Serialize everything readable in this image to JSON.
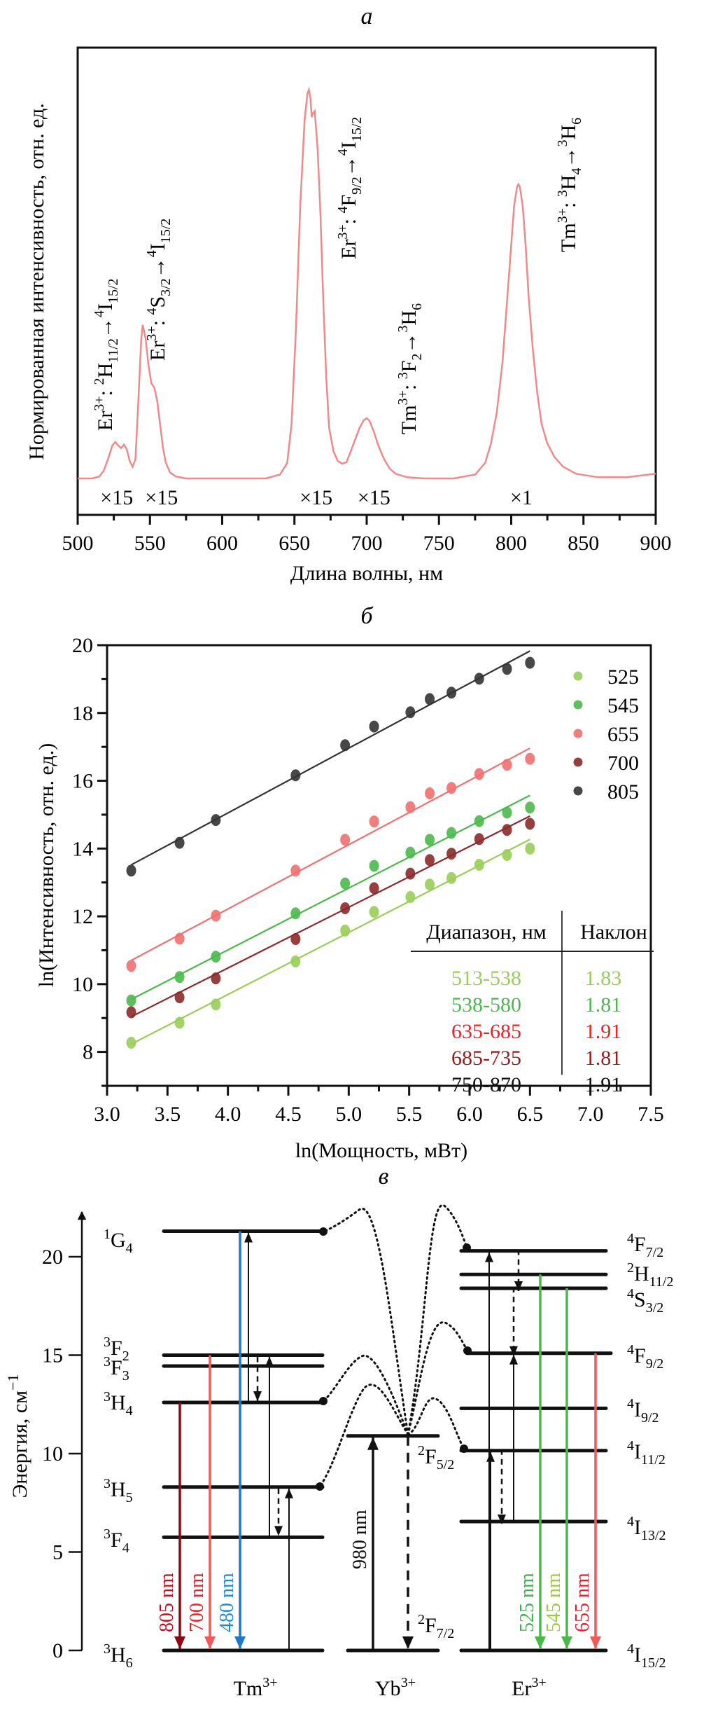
{
  "chart_data": [
    {
      "panel": "a",
      "type": "line",
      "title": "а",
      "xlabel": "Длина волны, нм",
      "ylabel": "Нормированная интенсивность, отн. ед.",
      "xlim": [
        500,
        900
      ],
      "ylim": [
        -0.28,
        1.1
      ],
      "xticks": [
        500,
        550,
        600,
        650,
        700,
        750,
        800,
        850,
        900
      ],
      "yticks_shown": false,
      "color": "#f08080",
      "series": [
        {
          "name": "spectrum",
          "x": [
            500,
            510,
            515,
            518,
            521,
            524,
            526,
            528,
            530,
            532,
            534,
            536,
            538,
            540,
            542,
            544,
            545,
            547,
            549,
            551,
            553,
            555,
            557,
            559,
            561,
            564,
            568,
            575,
            600,
            630,
            640,
            645,
            648,
            651,
            654,
            657,
            659,
            660,
            661,
            662,
            663,
            664,
            666,
            668,
            670,
            672,
            674,
            677,
            680,
            683,
            686,
            689,
            692,
            695,
            698,
            700,
            702,
            705,
            708,
            712,
            716,
            720,
            728,
            740,
            760,
            775,
            782,
            786,
            790,
            794,
            797,
            800,
            802,
            804,
            805,
            806,
            808,
            810,
            812,
            815,
            818,
            821,
            825,
            830,
            836,
            845,
            860,
            880,
            900
          ],
          "y": [
            0.0,
            0.0,
            0.005,
            0.02,
            0.05,
            0.085,
            0.094,
            0.085,
            0.078,
            0.087,
            0.075,
            0.045,
            0.03,
            0.05,
            0.2,
            0.36,
            0.395,
            0.36,
            0.29,
            0.245,
            0.234,
            0.2,
            0.14,
            0.08,
            0.04,
            0.015,
            0.005,
            0.0,
            0.0,
            0.0,
            0.01,
            0.04,
            0.14,
            0.38,
            0.7,
            0.92,
            0.99,
            1.0,
            0.98,
            0.93,
            0.94,
            0.945,
            0.85,
            0.68,
            0.45,
            0.26,
            0.13,
            0.07,
            0.045,
            0.038,
            0.042,
            0.07,
            0.1,
            0.13,
            0.15,
            0.155,
            0.148,
            0.12,
            0.085,
            0.05,
            0.025,
            0.012,
            0.003,
            0.0,
            0.0,
            0.01,
            0.04,
            0.09,
            0.17,
            0.3,
            0.45,
            0.6,
            0.7,
            0.75,
            0.757,
            0.75,
            0.7,
            0.6,
            0.47,
            0.33,
            0.22,
            0.14,
            0.09,
            0.055,
            0.03,
            0.012,
            0.003,
            0.003,
            0.012
          ]
        }
      ],
      "annotations": [
        {
          "id": "er-2h11",
          "wavelength": 527,
          "lines": [
            "Er",
            "3+",
            ": ",
            "2",
            "H",
            "11/2",
            "→",
            "4",
            "I",
            "15/2"
          ]
        },
        {
          "id": "er-4s32",
          "wavelength": 557,
          "lines": [
            "Er",
            "3+",
            ": ",
            "4",
            "S",
            "3/2",
            "→",
            "4",
            "I",
            "15/2"
          ]
        },
        {
          "id": "er-4f92",
          "wavelength": 690,
          "lines": [
            "Er",
            "3+",
            ": ",
            "4",
            "F",
            "9/2",
            "→",
            "4",
            "I",
            "15/2"
          ]
        },
        {
          "id": "tm-3f2",
          "wavelength": 720,
          "lines": [
            "Tm",
            "3+",
            ": ",
            "3",
            "F",
            "2",
            "→",
            "3",
            "H",
            "6"
          ]
        },
        {
          "id": "tm-3h4",
          "wavelength": 838,
          "lines": [
            "Tm",
            "3+",
            ": ",
            "3",
            "H",
            "4",
            "→",
            "3",
            "H",
            "6"
          ]
        }
      ],
      "multipliers": [
        {
          "label": "×15",
          "wavelength": 527
        },
        {
          "label": "×15",
          "wavelength": 558
        },
        {
          "label": "×15",
          "wavelength": 665
        },
        {
          "label": "×15",
          "wavelength": 705
        },
        {
          "label": "×1",
          "wavelength": 807
        }
      ]
    },
    {
      "panel": "б",
      "type": "scatter",
      "title": "б",
      "xlabel": "ln(Мощность, мВт)",
      "ylabel": "ln(Интенсивность, отн. ед.)",
      "xlim": [
        3.0,
        7.5
      ],
      "ylim": [
        7,
        20
      ],
      "xticks": [
        "3.0",
        "3.5",
        "4.0",
        "4.5",
        "5.0",
        "5.5",
        "6.0",
        "6.5",
        "7.0",
        "7.5"
      ],
      "yticks": [
        "8",
        "10",
        "12",
        "14",
        "16",
        "18",
        "20"
      ],
      "legend_position": "top-right",
      "x": [
        3.2,
        3.6,
        3.9,
        4.56,
        4.97,
        5.21,
        5.51,
        5.67,
        5.85,
        6.08,
        6.31,
        6.5
      ],
      "series": [
        {
          "name": "525",
          "color": "#9acd5a",
          "values": [
            8.27,
            8.86,
            9.4,
            10.67,
            11.58,
            12.13,
            12.57,
            12.94,
            13.13,
            13.52,
            13.81,
            14.0
          ],
          "fit": [
            8.23,
            14.27
          ]
        },
        {
          "name": "545",
          "color": "#4cb84c",
          "values": [
            9.52,
            10.21,
            10.81,
            12.09,
            12.97,
            13.49,
            13.88,
            14.26,
            14.46,
            14.81,
            15.06,
            15.21
          ],
          "fit": [
            9.55,
            15.57
          ]
        },
        {
          "name": "655",
          "color": "#f07070",
          "values": [
            10.54,
            11.34,
            12.02,
            13.35,
            14.26,
            14.8,
            15.22,
            15.63,
            15.79,
            16.2,
            16.47,
            16.65
          ],
          "fit": [
            10.7,
            16.96
          ]
        },
        {
          "name": "700",
          "color": "#8b2a2a",
          "values": [
            9.17,
            9.61,
            10.17,
            11.33,
            12.24,
            12.83,
            13.26,
            13.66,
            13.85,
            14.28,
            14.55,
            14.73
          ],
          "fit": [
            9.04,
            14.96
          ]
        },
        {
          "name": "805",
          "color": "#333333",
          "values": [
            13.35,
            14.17,
            14.84,
            16.16,
            17.05,
            17.6,
            18.02,
            18.41,
            18.6,
            19.01,
            19.3,
            19.48
          ],
          "fit": [
            13.52,
            19.83
          ]
        }
      ],
      "table": {
        "headers": [
          "Диапазон, нм",
          "Наклон"
        ],
        "rows": [
          {
            "range": "513-538",
            "slope": "1.83",
            "color": "#9acd5a"
          },
          {
            "range": "538-580",
            "slope": "1.81",
            "color": "#4cb84c"
          },
          {
            "range": "635-685",
            "slope": "1.91",
            "color": "#ee2222"
          },
          {
            "range": "685-735",
            "slope": "1.81",
            "color": "#9b1b1b"
          },
          {
            "range": "750-870",
            "slope": "1.91",
            "color": "#111111"
          }
        ]
      }
    },
    {
      "panel": "в",
      "type": "diagram",
      "title": "в",
      "ylabel": "Энергия, см",
      "ylabel_sup": "−1",
      "ylim": [
        0,
        23
      ],
      "yticks": [
        "0",
        "5",
        "10",
        "15",
        "20"
      ],
      "ions": [
        {
          "name": "Tm",
          "charge": "3+",
          "levels": [
            {
              "term": "1G4",
              "sup": "1",
              "letter": "G",
              "sub": "4",
              "energy": 21.3
            },
            {
              "term": "3F2",
              "sup": "3",
              "letter": "F",
              "sub": "2",
              "energy": 15.0
            },
            {
              "term": "3F3",
              "sup": "3",
              "letter": "F",
              "sub": "3",
              "energy": 14.45
            },
            {
              "term": "3H4",
              "sup": "3",
              "letter": "H",
              "sub": "4",
              "energy": 12.6
            },
            {
              "term": "3H5",
              "sup": "3",
              "letter": "H",
              "sub": "5",
              "energy": 8.3
            },
            {
              "term": "3F4",
              "sup": "3",
              "letter": "F",
              "sub": "4",
              "energy": 5.75
            },
            {
              "term": "3H6",
              "sup": "3",
              "letter": "H",
              "sub": "6",
              "energy": 0
            }
          ],
          "emissions": [
            {
              "label": "805 nm",
              "from": 12.6,
              "to": 0,
              "color": "#8b0a14",
              "text_color": "#c0101a"
            },
            {
              "label": "700 nm",
              "from": 15.0,
              "to": 0,
              "color": "#f05a5a",
              "text_color": "#e8202a"
            },
            {
              "label": "480 nm",
              "from": 21.3,
              "to": 0,
              "color": "#1f78c8",
              "text_color": "#1f8ad8"
            }
          ]
        },
        {
          "name": "Yb",
          "charge": "3+",
          "levels": [
            {
              "term": "2F5/2",
              "sup": "2",
              "letter": "F",
              "sub": "5/2",
              "energy": 10.9
            },
            {
              "term": "2F7/2",
              "sup": "2",
              "letter": "F",
              "sub": "7/2",
              "energy": 0
            }
          ],
          "excitation": {
            "label": "980 nm",
            "from": 0,
            "to": 10.9
          }
        },
        {
          "name": "Er",
          "charge": "3+",
          "levels": [
            {
              "term": "4F7/2",
              "sup": "4",
              "letter": "F",
              "sub": "7/2",
              "energy": 20.3
            },
            {
              "term": "2H11/2",
              "sup": "2",
              "letter": "H",
              "sub": "11/2",
              "energy": 19.1
            },
            {
              "term": "4S3/2",
              "sup": "4",
              "letter": "S",
              "sub": "3/2",
              "energy": 18.4
            },
            {
              "term": "4F9/2",
              "sup": "4",
              "letter": "F",
              "sub": "9/2",
              "energy": 15.1
            },
            {
              "term": "4I9/2",
              "sup": "4",
              "letter": "I",
              "sub": "9/2",
              "energy": 12.3
            },
            {
              "term": "4I11/2",
              "sup": "4",
              "letter": "I",
              "sub": "11/2",
              "energy": 10.15
            },
            {
              "term": "4I13/2",
              "sup": "4",
              "letter": "I",
              "sub": "13/2",
              "energy": 6.55
            },
            {
              "term": "4I15/2",
              "sup": "4",
              "letter": "I",
              "sub": "15/2",
              "energy": 0
            }
          ],
          "emissions": [
            {
              "label": "525 nm",
              "from": 19.1,
              "to": 0,
              "color": "#4cb84c",
              "text_color": "#3cb44c"
            },
            {
              "label": "545 nm",
              "from": 18.4,
              "to": 0,
              "color": "#4cb84c",
              "text_color": "#9acd3a"
            },
            {
              "label": "655 nm",
              "from": 15.1,
              "to": 0,
              "color": "#f05a5a",
              "text_color": "#e8202a"
            }
          ]
        }
      ]
    }
  ]
}
